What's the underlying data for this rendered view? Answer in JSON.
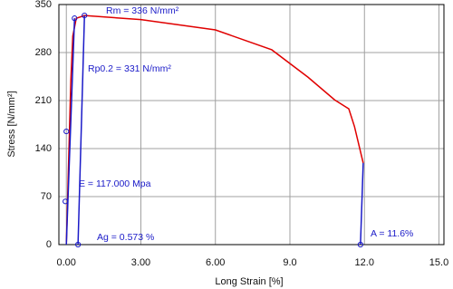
{
  "chart_data": {
    "type": "line",
    "xlabel": "Long Strain [%]",
    "ylabel": "Stress [N/mm²]",
    "xlim": [
      -0.3,
      15.2
    ],
    "ylim": [
      0,
      350
    ],
    "xticks": [
      {
        "value": 0,
        "label": "0.00"
      },
      {
        "value": 3,
        "label": "3.00"
      },
      {
        "value": 6,
        "label": "6.00"
      },
      {
        "value": 9,
        "label": "9.0"
      },
      {
        "value": 12,
        "label": "12.0"
      },
      {
        "value": 15,
        "label": "15.0"
      }
    ],
    "yticks": [
      0,
      70,
      140,
      210,
      280,
      350
    ],
    "grid": true,
    "series": [
      {
        "color": "#e00000",
        "line": true,
        "markers": false,
        "x": [
          0,
          0.18,
          0.26,
          0.4,
          0.73,
          3,
          6,
          8.27,
          9.73,
          10.8,
          11.37,
          11.6,
          11.95
        ],
        "values": [
          0,
          238,
          304,
          330,
          334,
          328,
          313,
          284,
          244,
          211,
          198,
          172,
          119
        ]
      },
      {
        "color": "#1a1ac8",
        "line": true,
        "markers": false,
        "x": [
          0,
          0.33,
          null,
          0.47,
          0.73,
          null,
          11.84,
          11.95
        ],
        "values": [
          0,
          330,
          null,
          0,
          334,
          null,
          0,
          119
        ]
      },
      {
        "color": "#1a1ac8",
        "line": false,
        "markers": true,
        "x": [
          0.33,
          0.73,
          0,
          -0.04,
          0.47,
          11.84
        ],
        "values": [
          330,
          334,
          165,
          63,
          0,
          0
        ]
      }
    ],
    "annotations": [
      "Rm = 336 N/mm²",
      "Rp0.2 = 331 N/mm²",
      "E = 117.000 Mpa",
      "Ag = 0.573 %",
      "A = 11.6%"
    ]
  }
}
